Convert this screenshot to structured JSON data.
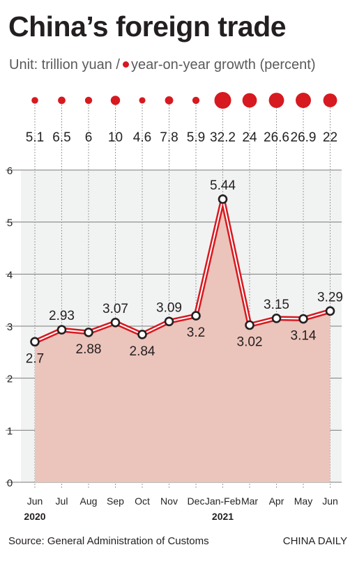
{
  "title": "China’s foreign trade",
  "subtitle": {
    "unit": "Unit: trillion yuan /",
    "growth": "year-on-year growth (percent)"
  },
  "footer": {
    "source": "Source: General Administration of Customs",
    "brand": "CHINA DAILY"
  },
  "colors": {
    "accent": "#d71920",
    "area_fill": "#ebc4bb",
    "plot_bg": "#f1f3f2"
  },
  "chart_data": {
    "type": "line",
    "categories": [
      "Jun",
      "Jul",
      "Aug",
      "Sep",
      "Oct",
      "Nov",
      "Dec",
      "Jan-Feb",
      "Mar",
      "Apr",
      "May",
      "Jun"
    ],
    "years": [
      {
        "label": "2020",
        "category_index": 0
      },
      {
        "label": "2021",
        "category_index": 7
      }
    ],
    "ylim": [
      0,
      6
    ],
    "yticks": [
      0,
      1,
      2,
      3,
      4,
      5,
      6
    ],
    "grid": true,
    "series": [
      {
        "values": [
          2.7,
          2.93,
          2.88,
          3.07,
          2.84,
          3.09,
          3.2,
          5.44,
          3.02,
          3.15,
          3.14,
          3.29
        ],
        "labels": [
          "2.7",
          "2.93",
          "2.88",
          "3.07",
          "2.84",
          "3.09",
          "3.2",
          "5.44",
          "3.02",
          "3.15",
          "3.14",
          "3.29"
        ],
        "label_position": [
          "below",
          "above",
          "below",
          "above",
          "below",
          "above",
          "below",
          "above",
          "below",
          "above",
          "below",
          "above"
        ]
      }
    ],
    "growth": {
      "values": [
        5.1,
        6.5,
        6,
        10,
        4.6,
        7.8,
        5.9,
        32.2,
        24,
        26.6,
        26.9,
        22
      ],
      "labels": [
        "5.1",
        "6.5",
        "6",
        "10",
        "4.6",
        "7.8",
        "5.9",
        "32.2",
        "24",
        "26.6",
        "26.9",
        "22"
      ]
    }
  }
}
